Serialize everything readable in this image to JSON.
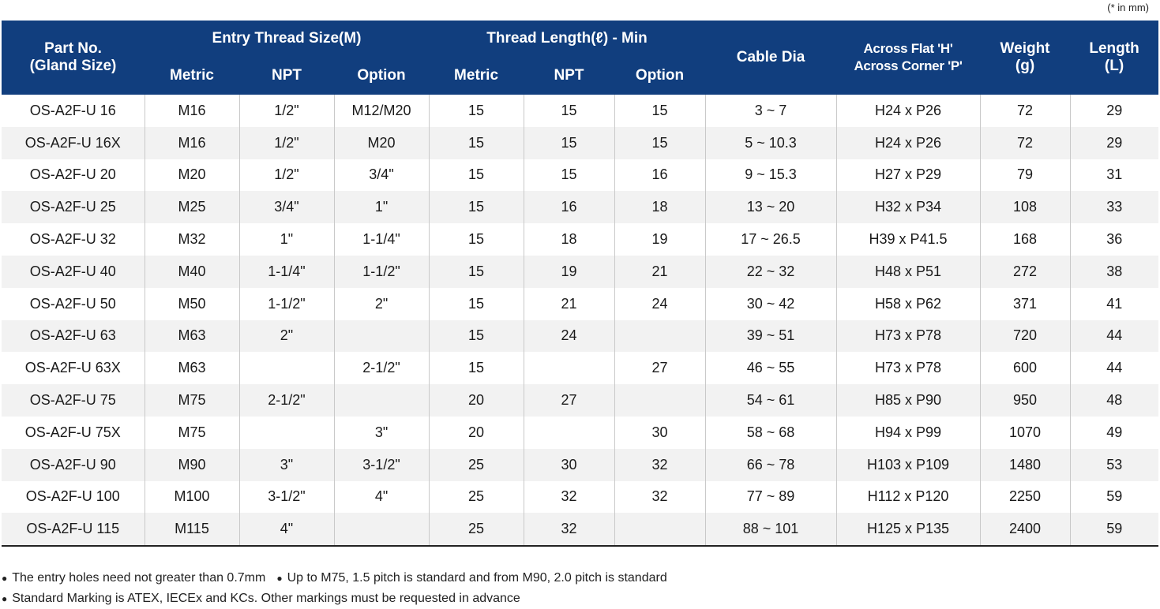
{
  "unit_note": "(* in mm)",
  "header": {
    "part_no_line1": "Part No.",
    "part_no_line2": "(Gland Size)",
    "entry_thread": "Entry Thread Size(M)",
    "thread_length": "Thread Length(ℓ) - Min",
    "cable_dia": "Cable Dia",
    "across_line1": "Across Flat 'H'",
    "across_line2": "Across Corner 'P'",
    "weight_line1": "Weight",
    "weight_line2": "(g)",
    "length_line1": "Length",
    "length_line2": "(L)",
    "metric": "Metric",
    "npt": "NPT",
    "option": "Option"
  },
  "rows": [
    [
      "OS-A2F-U 16",
      "M16",
      "1/2\"",
      "M12/M20",
      "15",
      "15",
      "15",
      "3 ~ 7",
      "H24 x P26",
      "72",
      "29"
    ],
    [
      "OS-A2F-U 16X",
      "M16",
      "1/2\"",
      "M20",
      "15",
      "15",
      "15",
      "5 ~ 10.3",
      "H24 x P26",
      "72",
      "29"
    ],
    [
      "OS-A2F-U 20",
      "M20",
      "1/2\"",
      "3/4\"",
      "15",
      "15",
      "16",
      "9 ~ 15.3",
      "H27 x P29",
      "79",
      "31"
    ],
    [
      "OS-A2F-U 25",
      "M25",
      "3/4\"",
      "1\"",
      "15",
      "16",
      "18",
      "13 ~ 20",
      "H32 x P34",
      "108",
      "33"
    ],
    [
      "OS-A2F-U 32",
      "M32",
      "1\"",
      "1-1/4\"",
      "15",
      "18",
      "19",
      "17 ~ 26.5",
      "H39 x P41.5",
      "168",
      "36"
    ],
    [
      "OS-A2F-U 40",
      "M40",
      "1-1/4\"",
      "1-1/2\"",
      "15",
      "19",
      "21",
      "22 ~ 32",
      "H48 x P51",
      "272",
      "38"
    ],
    [
      "OS-A2F-U 50",
      "M50",
      "1-1/2\"",
      "2\"",
      "15",
      "21",
      "24",
      "30 ~ 42",
      "H58 x P62",
      "371",
      "41"
    ],
    [
      "OS-A2F-U 63",
      "M63",
      "2\"",
      "",
      "15",
      "24",
      "",
      "39 ~ 51",
      "H73 x P78",
      "720",
      "44"
    ],
    [
      "OS-A2F-U 63X",
      "M63",
      "",
      "2-1/2\"",
      "15",
      "",
      "27",
      "46 ~ 55",
      "H73 x P78",
      "600",
      "44"
    ],
    [
      "OS-A2F-U 75",
      "M75",
      "2-1/2\"",
      "",
      "20",
      "27",
      "",
      "54 ~ 61",
      "H85 x P90",
      "950",
      "48"
    ],
    [
      "OS-A2F-U 75X",
      "M75",
      "",
      "3\"",
      "20",
      "",
      "30",
      "58 ~ 68",
      "H94 x P99",
      "1070",
      "49"
    ],
    [
      "OS-A2F-U 90",
      "M90",
      "3\"",
      "3-1/2\"",
      "25",
      "30",
      "32",
      "66 ~ 78",
      "H103 x P109",
      "1480",
      "53"
    ],
    [
      "OS-A2F-U 100",
      "M100",
      "3-1/2\"",
      "4\"",
      "25",
      "32",
      "32",
      "77 ~ 89",
      "H112 x P120",
      "2250",
      "59"
    ],
    [
      "OS-A2F-U 115",
      "M115",
      "4\"",
      "",
      "25",
      "32",
      "",
      "88 ~ 101",
      "H125 x P135",
      "2400",
      "59"
    ]
  ],
  "footnotes": {
    "note1": "The entry holes need not greater than 0.7mm",
    "note2": "Up to M75, 1.5 pitch is standard and from M90, 2.0 pitch is standard",
    "note3": "Standard Marking is ATEX, IECEx and KCs. Other markings must be requested in advance"
  }
}
